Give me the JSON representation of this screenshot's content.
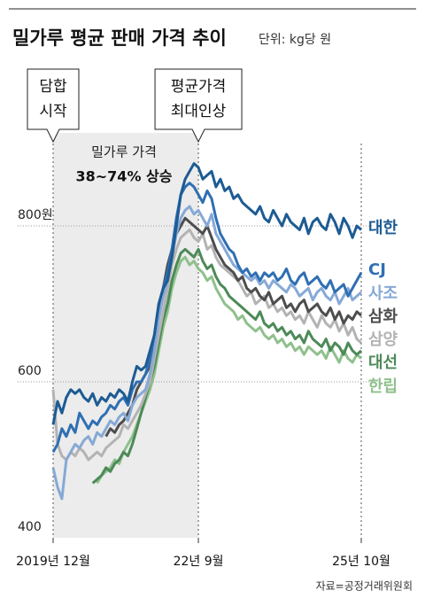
{
  "chart_data": {
    "type": "line",
    "title": "밀가루 평균 판매 가격 추이",
    "subtitle": "단위: kg당 원",
    "source": "자료=공정거래위원회",
    "annotations": {
      "collusion": [
        "담합",
        "시작"
      ],
      "max_hike": [
        "평균가격",
        "최대인상"
      ],
      "rise_label": "밀가루 가격",
      "rise_value": "38~74% 상승"
    },
    "categories": [
      "2019년 12월",
      null,
      null,
      null,
      null,
      null,
      null,
      null,
      null,
      null,
      null,
      null,
      null,
      null,
      null,
      null,
      null,
      null,
      null,
      null,
      null,
      null,
      null,
      null,
      null,
      null,
      null,
      null,
      null,
      null,
      null,
      null,
      null,
      "22년 9월",
      null,
      null,
      null,
      null,
      null,
      null,
      null,
      null,
      null,
      null,
      null,
      null,
      null,
      null,
      null,
      null,
      null,
      null,
      null,
      null,
      null,
      null,
      null,
      null,
      null,
      null,
      null,
      null,
      null,
      null,
      null,
      null,
      null,
      null,
      null,
      null,
      "25년 10월"
    ],
    "ylim": [
      400,
      900
    ],
    "yticks": [
      400,
      600,
      {
        "value": 800,
        "label": "800원"
      }
    ],
    "grid": true,
    "series": [
      {
        "name": "대한",
        "color": "#1d5b94",
        "values": [
          545,
          575,
          560,
          580,
          590,
          585,
          590,
          580,
          575,
          585,
          570,
          580,
          575,
          585,
          580,
          590,
          585,
          575,
          600,
          620,
          615,
          620,
          640,
          660,
          700,
          720,
          730,
          760,
          800,
          840,
          860,
          870,
          880,
          875,
          860,
          865,
          870,
          850,
          860,
          845,
          850,
          835,
          840,
          830,
          825,
          820,
          815,
          825,
          810,
          805,
          820,
          810,
          800,
          815,
          805,
          800,
          795,
          810,
          790,
          805,
          810,
          800,
          795,
          815,
          805,
          790,
          810,
          800,
          785,
          800,
          795
        ]
      },
      {
        "name": "CJ",
        "color": "#2f6fb3",
        "values": [
          510,
          520,
          540,
          530,
          545,
          535,
          560,
          550,
          540,
          550,
          545,
          555,
          560,
          570,
          565,
          575,
          580,
          570,
          590,
          600,
          600,
          610,
          630,
          660,
          700,
          720,
          740,
          770,
          810,
          840,
          850,
          855,
          850,
          840,
          830,
          845,
          835,
          810,
          790,
          780,
          770,
          765,
          750,
          740,
          745,
          735,
          740,
          730,
          740,
          735,
          740,
          730,
          735,
          745,
          730,
          725,
          735,
          740,
          725,
          730,
          735,
          725,
          720,
          730,
          715,
          720,
          725,
          710,
          720,
          730,
          740
        ]
      },
      {
        "name": "사조",
        "color": "#86a9d6",
        "values": [
          490,
          465,
          450,
          500,
          510,
          520,
          515,
          525,
          530,
          520,
          535,
          530,
          540,
          550,
          545,
          555,
          560,
          550,
          570,
          580,
          585,
          590,
          610,
          640,
          680,
          710,
          730,
          760,
          790,
          810,
          820,
          825,
          815,
          820,
          810,
          800,
          815,
          790,
          780,
          770,
          760,
          750,
          745,
          740,
          735,
          730,
          735,
          725,
          730,
          720,
          730,
          725,
          720,
          715,
          725,
          720,
          710,
          715,
          720,
          705,
          715,
          720,
          710,
          705,
          715,
          700,
          710,
          720,
          705,
          710,
          715
        ]
      },
      {
        "name": "삼화",
        "color": "#4d4d4d",
        "values": [
          null,
          null,
          null,
          null,
          null,
          null,
          null,
          null,
          null,
          null,
          null,
          null,
          530,
          540,
          535,
          545,
          550,
          560,
          570,
          590,
          600,
          610,
          620,
          650,
          690,
          720,
          750,
          770,
          790,
          800,
          810,
          805,
          800,
          795,
          790,
          800,
          785,
          770,
          760,
          750,
          745,
          740,
          730,
          735,
          720,
          715,
          720,
          710,
          705,
          715,
          700,
          705,
          710,
          695,
          700,
          690,
          700,
          705,
          690,
          695,
          700,
          690,
          685,
          695,
          680,
          690,
          675,
          685,
          680,
          690,
          685
        ]
      },
      {
        "name": "삼양",
        "color": "#b3b3b3",
        "values": [
          590,
          520,
          505,
          500,
          510,
          505,
          515,
          510,
          500,
          505,
          510,
          505,
          515,
          520,
          525,
          530,
          545,
          540,
          550,
          560,
          570,
          585,
          600,
          630,
          660,
          690,
          720,
          750,
          770,
          785,
          790,
          795,
          785,
          780,
          790,
          770,
          775,
          760,
          750,
          745,
          740,
          735,
          730,
          720,
          710,
          715,
          700,
          705,
          710,
          695,
          700,
          690,
          695,
          685,
          690,
          680,
          685,
          675,
          690,
          680,
          670,
          685,
          675,
          670,
          680,
          665,
          675,
          660,
          670,
          655,
          650
        ]
      },
      {
        "name": "대선",
        "color": "#4c8a57",
        "values": [
          null,
          null,
          null,
          null,
          null,
          null,
          null,
          null,
          null,
          470,
          475,
          480,
          490,
          485,
          495,
          500,
          510,
          505,
          520,
          540,
          560,
          580,
          600,
          620,
          650,
          680,
          700,
          730,
          750,
          765,
          770,
          765,
          760,
          770,
          755,
          745,
          750,
          735,
          725,
          720,
          710,
          705,
          700,
          695,
          690,
          685,
          680,
          690,
          675,
          670,
          675,
          665,
          670,
          660,
          665,
          655,
          660,
          650,
          665,
          655,
          650,
          645,
          655,
          640,
          650,
          645,
          635,
          650,
          640,
          635,
          640
        ]
      },
      {
        "name": "한립",
        "color": "#8fc08c",
        "values": [
          null,
          null,
          null,
          null,
          null,
          null,
          null,
          null,
          null,
          null,
          470,
          480,
          485,
          490,
          500,
          495,
          510,
          520,
          530,
          545,
          560,
          575,
          590,
          610,
          640,
          670,
          690,
          720,
          740,
          755,
          760,
          750,
          755,
          745,
          740,
          730,
          735,
          720,
          710,
          700,
          695,
          690,
          680,
          685,
          675,
          670,
          665,
          670,
          660,
          655,
          660,
          650,
          655,
          645,
          650,
          640,
          645,
          635,
          645,
          640,
          635,
          640,
          630,
          645,
          635,
          625,
          640,
          630,
          625,
          635,
          630
        ]
      }
    ]
  }
}
